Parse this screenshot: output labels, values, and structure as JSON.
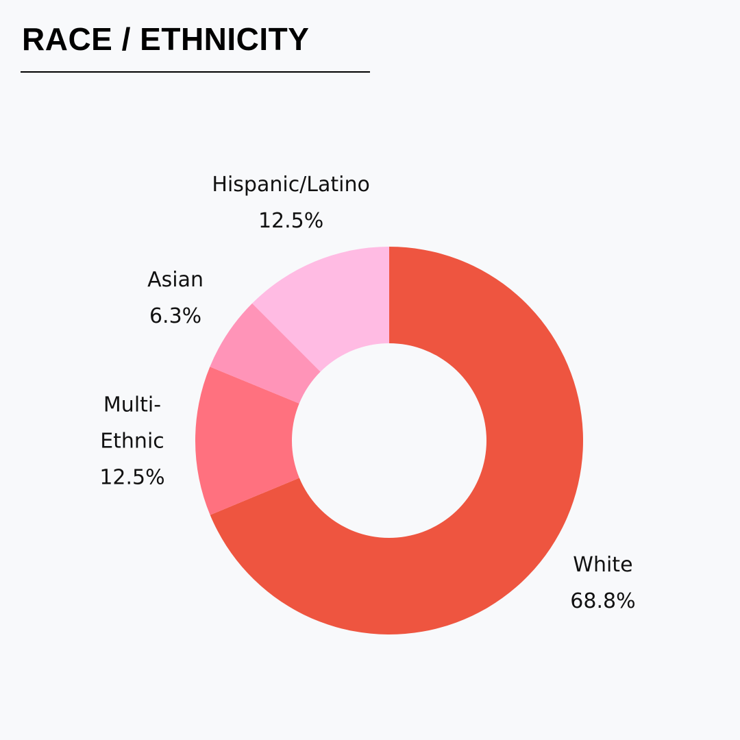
{
  "chart_data": {
    "type": "donut",
    "title": "RACE / ETHNICITY",
    "categories": [
      "White",
      "Multi-Ethnic",
      "Asian",
      "Hispanic/Latino"
    ],
    "values": [
      68.8,
      12.5,
      6.3,
      12.5
    ],
    "value_labels": [
      "68.8%",
      "12.5%",
      "6.3%",
      "12.5%"
    ],
    "colors": [
      "#ee5540",
      "#ff717f",
      "#ff94b8",
      "#ffbbe3"
    ]
  }
}
